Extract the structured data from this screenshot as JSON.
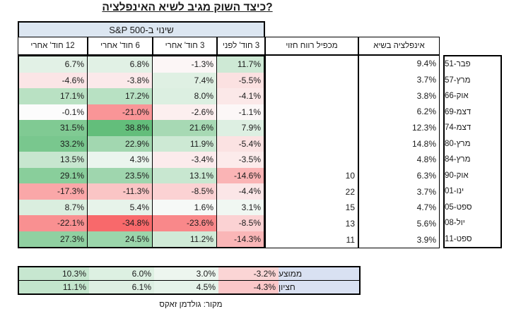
{
  "chart_data": {
    "type": "table",
    "title": "כיצד השוק מגיב לשיא האינפלציה?",
    "source": "מקור: גולדמן זאקס",
    "group_header": "שינוי ב-S&P 500",
    "columns": [
      "12 חוד' אחרי",
      "6 חוד' אחרי",
      "3 חוד' אחרי",
      "3 חוד' לפני",
      "מכפיל רווח חזוי",
      "אינפלציה בשיא"
    ],
    "columns_note": "listed in visual left-to-right order; table reads right-to-left",
    "rows": [
      {
        "label": "פבר-51",
        "inflation_peak_pct": 9.4,
        "forward_pe": null,
        "chg_3m_before": 11.7,
        "chg_3m_after": -1.3,
        "chg_6m_after": 6.8,
        "chg_12m_after": 6.7
      },
      {
        "label": "מרץ-57",
        "inflation_peak_pct": 3.7,
        "forward_pe": null,
        "chg_3m_before": -5.5,
        "chg_3m_after": 7.4,
        "chg_6m_after": -3.8,
        "chg_12m_after": -4.6
      },
      {
        "label": "אוק-66",
        "inflation_peak_pct": 3.8,
        "forward_pe": null,
        "chg_3m_before": -4.1,
        "chg_3m_after": 8.0,
        "chg_6m_after": 17.2,
        "chg_12m_after": 17.1
      },
      {
        "label": "דצמ-69",
        "inflation_peak_pct": 6.2,
        "forward_pe": null,
        "chg_3m_before": -1.1,
        "chg_3m_after": -2.6,
        "chg_6m_after": -21.0,
        "chg_12m_after": -0.1
      },
      {
        "label": "דצמ-74",
        "inflation_peak_pct": 12.3,
        "forward_pe": null,
        "chg_3m_before": 7.9,
        "chg_3m_after": 21.6,
        "chg_6m_after": 38.8,
        "chg_12m_after": 31.5
      },
      {
        "label": "מרץ-80",
        "inflation_peak_pct": 14.8,
        "forward_pe": null,
        "chg_3m_before": -5.4,
        "chg_3m_after": 11.9,
        "chg_6m_after": 22.9,
        "chg_12m_after": 33.2
      },
      {
        "label": "מרץ-84",
        "inflation_peak_pct": 4.8,
        "forward_pe": null,
        "chg_3m_before": -3.5,
        "chg_3m_after": -3.4,
        "chg_6m_after": 4.3,
        "chg_12m_after": 13.5
      },
      {
        "label": "אוק-90",
        "inflation_peak_pct": 6.3,
        "forward_pe": 10,
        "chg_3m_before": -14.6,
        "chg_3m_after": 13.1,
        "chg_6m_after": 23.5,
        "chg_12m_after": 29.1
      },
      {
        "label": "ינו-01",
        "inflation_peak_pct": 3.7,
        "forward_pe": 22,
        "chg_3m_before": -4.4,
        "chg_3m_after": -8.5,
        "chg_6m_after": -11.3,
        "chg_12m_after": -17.3
      },
      {
        "label": "ספט-05",
        "inflation_peak_pct": 4.7,
        "forward_pe": 15,
        "chg_3m_before": 3.1,
        "chg_3m_after": 1.6,
        "chg_6m_after": 5.4,
        "chg_12m_after": 8.7
      },
      {
        "label": "יול-08",
        "inflation_peak_pct": 5.6,
        "forward_pe": 13,
        "chg_3m_before": -8.5,
        "chg_3m_after": -23.6,
        "chg_6m_after": -34.8,
        "chg_12m_after": -22.1
      },
      {
        "label": "ספט-11",
        "inflation_peak_pct": 3.9,
        "forward_pe": 11,
        "chg_3m_before": -14.3,
        "chg_3m_after": 11.2,
        "chg_6m_after": 24.5,
        "chg_12m_after": 27.3
      }
    ],
    "summary_rows": [
      {
        "label": "ממוצע",
        "chg_3m_before": -3.2,
        "chg_3m_after": 3.0,
        "chg_6m_after": 6.0,
        "chg_12m_after": 10.3
      },
      {
        "label": "חציון",
        "chg_3m_before": -4.3,
        "chg_3m_after": 4.5,
        "chg_6m_after": 6.1,
        "chg_12m_after": 11.1
      }
    ]
  },
  "colors": {
    "positive_scale_max": "#63BE7B",
    "negative_scale_max": "#F8696B",
    "scale_neutral": "#FCFCFC",
    "group_header_fill": "#DCE6F1",
    "summary_label_fill": "#D9E1F2",
    "border": "#000000"
  }
}
